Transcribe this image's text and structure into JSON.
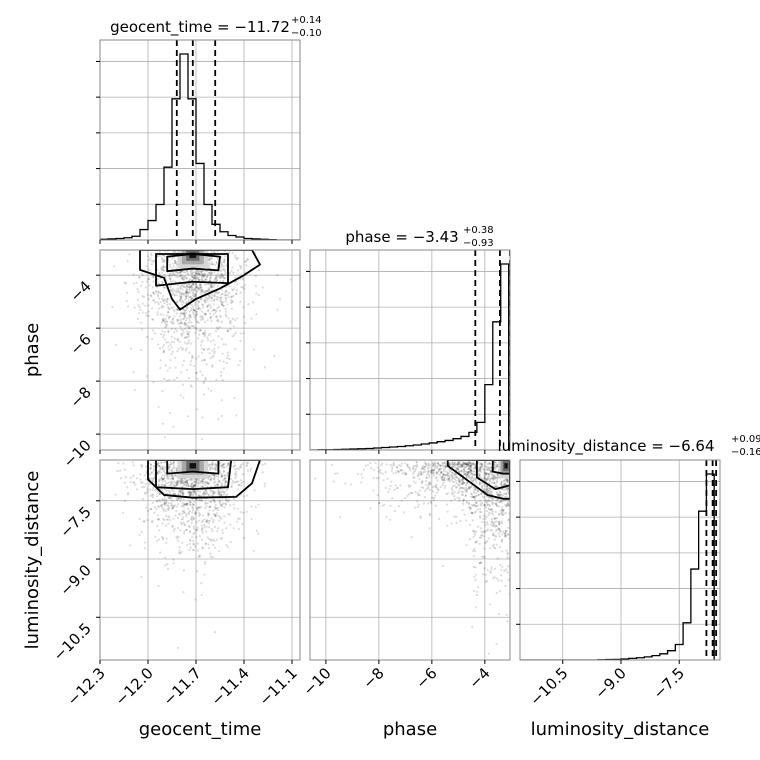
{
  "chart_data": {
    "type": "corner",
    "parameters": [
      "geocent_time",
      "phase",
      "luminosity_distance"
    ],
    "axis_labels": {
      "x": [
        "geocent_time",
        "phase",
        "luminosity_distance"
      ],
      "y": [
        "",
        "phase",
        "luminosity_distance"
      ]
    },
    "titles": [
      {
        "param": "geocent_time",
        "prefix": "geocent_time = −11.72",
        "plus": "+0.14",
        "minus": "−0.10"
      },
      {
        "param": "phase",
        "prefix": "phase = −3.43",
        "plus": "+0.38",
        "minus": "−0.93"
      },
      {
        "param": "luminosity_distance",
        "prefix": "luminosity_distance = −6.64",
        "plus": "+0.09",
        "minus": "−0.16"
      }
    ],
    "ranges": {
      "geocent_time": [
        -12.3,
        -11.05
      ],
      "phase": [
        -10.6,
        -3.05
      ],
      "luminosity_distance": [
        -11.6,
        -6.45
      ]
    },
    "ticks": {
      "geocent_time": [
        -12.3,
        -12.0,
        -11.7,
        -11.4,
        -11.1
      ],
      "phase": [
        -10,
        -8,
        -6,
        -4
      ],
      "luminosity_distance": [
        -10.5,
        -9.0,
        -7.5
      ]
    },
    "tick_labels": {
      "geocent_time": [
        "−12.3",
        "−12.0",
        "−11.7",
        "−11.4",
        "−11.1"
      ],
      "phase": [
        "−10",
        "−8",
        "−6",
        "−4"
      ],
      "luminosity_distance": [
        "−10.5",
        "−9.0",
        "−7.5"
      ]
    },
    "quantiles": {
      "geocent_time": [
        -11.82,
        -11.72,
        -11.58
      ],
      "phase": [
        -4.36,
        -3.43,
        -3.05
      ],
      "luminosity_distance": [
        -6.8,
        -6.64,
        -6.55
      ]
    },
    "histograms": {
      "geocent_time": {
        "edges": [
          -12.3,
          -12.25,
          -12.2,
          -12.15,
          -12.1,
          -12.05,
          -12.0,
          -11.95,
          -11.9,
          -11.85,
          -11.8,
          -11.75,
          -11.7,
          -11.65,
          -11.6,
          -11.55,
          -11.5,
          -11.45,
          -11.4,
          -11.35,
          -11.3,
          -11.25,
          -11.2,
          -11.15,
          -11.1,
          -11.05
        ],
        "counts": [
          2,
          3,
          4,
          6,
          10,
          28,
          52,
          95,
          195,
          378,
          498,
          378,
          205,
          95,
          42,
          22,
          12,
          8,
          4,
          3,
          2,
          1,
          0,
          0,
          0
        ]
      },
      "phase": {
        "edges": [
          -10.6,
          -10.3,
          -10.0,
          -9.7,
          -9.4,
          -9.1,
          -8.8,
          -8.5,
          -8.2,
          -7.9,
          -7.6,
          -7.3,
          -7.0,
          -6.7,
          -6.4,
          -6.1,
          -5.8,
          -5.5,
          -5.2,
          -4.9,
          -4.6,
          -4.3,
          -4.0,
          -3.7,
          -3.4,
          -3.1
        ],
        "counts": [
          0,
          1,
          1,
          2,
          3,
          4,
          5,
          6,
          8,
          10,
          12,
          14,
          17,
          20,
          24,
          28,
          33,
          38,
          45,
          54,
          70,
          110,
          260,
          510,
          740
        ]
      },
      "luminosity_distance": {
        "edges": [
          -11.6,
          -11.4,
          -11.2,
          -11.0,
          -10.8,
          -10.6,
          -10.4,
          -10.2,
          -10.0,
          -9.8,
          -9.6,
          -9.4,
          -9.2,
          -9.0,
          -8.8,
          -8.6,
          -8.4,
          -8.2,
          -8.0,
          -7.8,
          -7.6,
          -7.4,
          -7.2,
          -7.0,
          -6.8,
          -6.6
        ],
        "counts": [
          0,
          0,
          0,
          0,
          0,
          0,
          0,
          0,
          0,
          0,
          1,
          2,
          3,
          5,
          8,
          11,
          15,
          21,
          30,
          45,
          75,
          180,
          440,
          720,
          900
        ]
      }
    },
    "contours": [
      {
        "x": "geocent_time",
        "y": "phase",
        "levels": [
          [
            [
              -11.88,
              -3.85
            ],
            [
              -11.72,
              -3.75
            ],
            [
              -11.56,
              -3.82
            ],
            [
              -11.55,
              -3.3
            ],
            [
              -11.72,
              -3.2
            ],
            [
              -11.88,
              -3.3
            ]
          ],
          [
            [
              -11.95,
              -4.4
            ],
            [
              -11.72,
              -4.25
            ],
            [
              -11.5,
              -4.3
            ],
            [
              -11.5,
              -3.2
            ],
            [
              -11.95,
              -3.2
            ]
          ],
          [
            [
              -12.05,
              -3.8
            ],
            [
              -11.9,
              -4.1
            ],
            [
              -11.85,
              -4.9
            ],
            [
              -11.8,
              -5.3
            ],
            [
              -11.7,
              -4.9
            ],
            [
              -11.55,
              -4.5
            ],
            [
              -11.4,
              -4.0
            ],
            [
              -11.3,
              -3.6
            ],
            [
              -11.35,
              -3.05
            ],
            [
              -12.05,
              -3.05
            ]
          ]
        ]
      },
      {
        "x": "geocent_time",
        "y": "luminosity_distance",
        "levels": [
          [
            [
              -11.88,
              -6.8
            ],
            [
              -11.72,
              -6.75
            ],
            [
              -11.56,
              -6.8
            ],
            [
              -11.56,
              -6.45
            ],
            [
              -11.88,
              -6.45
            ]
          ],
          [
            [
              -11.95,
              -7.15
            ],
            [
              -11.72,
              -7.2
            ],
            [
              -11.5,
              -7.15
            ],
            [
              -11.48,
              -6.45
            ],
            [
              -11.95,
              -6.45
            ]
          ],
          [
            [
              -12.0,
              -6.95
            ],
            [
              -11.9,
              -7.35
            ],
            [
              -11.72,
              -7.42
            ],
            [
              -11.45,
              -7.4
            ],
            [
              -11.35,
              -7.05
            ],
            [
              -11.3,
              -6.45
            ],
            [
              -12.0,
              -6.45
            ]
          ]
        ]
      },
      {
        "x": "phase",
        "y": "luminosity_distance",
        "levels": [
          [
            [
              -3.7,
              -6.75
            ],
            [
              -3.3,
              -6.8
            ],
            [
              -3.05,
              -6.8
            ],
            [
              -3.05,
              -6.45
            ],
            [
              -3.7,
              -6.45
            ]
          ],
          [
            [
              -4.3,
              -6.9
            ],
            [
              -3.6,
              -7.2
            ],
            [
              -3.05,
              -7.1
            ],
            [
              -3.05,
              -6.45
            ],
            [
              -4.3,
              -6.45
            ]
          ],
          [
            [
              -5.4,
              -6.6
            ],
            [
              -4.7,
              -6.95
            ],
            [
              -3.9,
              -7.35
            ],
            [
              -3.3,
              -7.45
            ],
            [
              -3.05,
              -7.45
            ],
            [
              -3.05,
              -6.45
            ],
            [
              -5.4,
              -6.45
            ]
          ]
        ]
      }
    ],
    "density_peaks": [
      {
        "x": "geocent_time",
        "y": "phase",
        "cx": -11.72,
        "cy": -3.25
      },
      {
        "x": "geocent_time",
        "y": "luminosity_distance",
        "cx": -11.72,
        "cy": -6.6
      },
      {
        "x": "phase",
        "y": "luminosity_distance",
        "cx": -3.2,
        "cy": -6.6
      }
    ],
    "grid": true,
    "colors": {
      "line": "#000000",
      "grid": "#b0b0b0",
      "points": "#000000"
    }
  }
}
